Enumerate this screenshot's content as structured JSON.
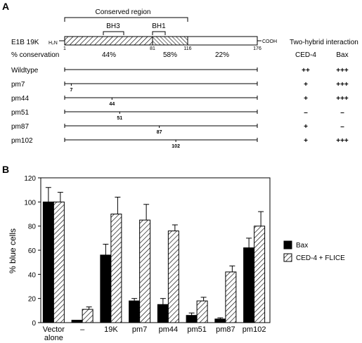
{
  "panel_a": {
    "label": "A",
    "conserved_region_label": "Conserved region",
    "bh3_label": "BH3",
    "bh1_label": "BH1",
    "protein_label": "E1B 19K",
    "n_term": "H₂N",
    "c_term": "COOH",
    "coords": {
      "start": "1",
      "p81": "81",
      "p116": "116",
      "end": "176"
    },
    "conservation_label": "% conservation",
    "conservation_values": [
      "44%",
      "58%",
      "22%"
    ],
    "interaction_header": "Two-hybrid interaction",
    "col_ced4": "CED-4",
    "col_bax": "Bax",
    "rows": [
      {
        "name": "Wildtype",
        "pos": "",
        "posval": null,
        "ced4": "++",
        "bax": "+++"
      },
      {
        "name": "pm7",
        "pos": "7",
        "posval": 7,
        "ced4": "+",
        "bax": "+++"
      },
      {
        "name": "pm44",
        "pos": "44",
        "posval": 44,
        "ced4": "+",
        "bax": "+++"
      },
      {
        "name": "pm51",
        "pos": "51",
        "posval": 51,
        "ced4": "–",
        "bax": "–"
      },
      {
        "name": "pm87",
        "pos": "87",
        "posval": 87,
        "ced4": "+",
        "bax": "–"
      },
      {
        "name": "pm102",
        "pos": "102",
        "posval": 102,
        "ced4": "+",
        "bax": "+++"
      }
    ]
  },
  "panel_b": {
    "label": "B",
    "legend_bax": "Bax",
    "legend_ced4": "CED-4 + FLICE"
  },
  "chart_data": {
    "type": "bar",
    "categories": [
      "Vector alone",
      "–",
      "19K",
      "pm7",
      "pm44",
      "pm51",
      "pm87",
      "pm102"
    ],
    "series": [
      {
        "name": "Bax",
        "values": [
          100,
          2,
          56,
          18,
          15,
          6,
          3,
          62
        ],
        "errors": [
          12,
          0,
          9,
          2,
          5,
          2,
          1,
          8
        ],
        "color": "#000000"
      },
      {
        "name": "CED-4 + FLICE",
        "values": [
          100,
          11,
          90,
          85,
          76,
          18,
          42,
          80
        ],
        "errors": [
          8,
          2,
          14,
          13,
          5,
          3,
          5,
          12
        ],
        "color": "#ffffff",
        "pattern": "diagonal-hatch"
      }
    ],
    "ylabel": "% blue cells",
    "xlabel": "",
    "ylim": [
      0,
      120
    ],
    "yticks": [
      0,
      20,
      40,
      60,
      80,
      100,
      120
    ],
    "legend": "right"
  }
}
